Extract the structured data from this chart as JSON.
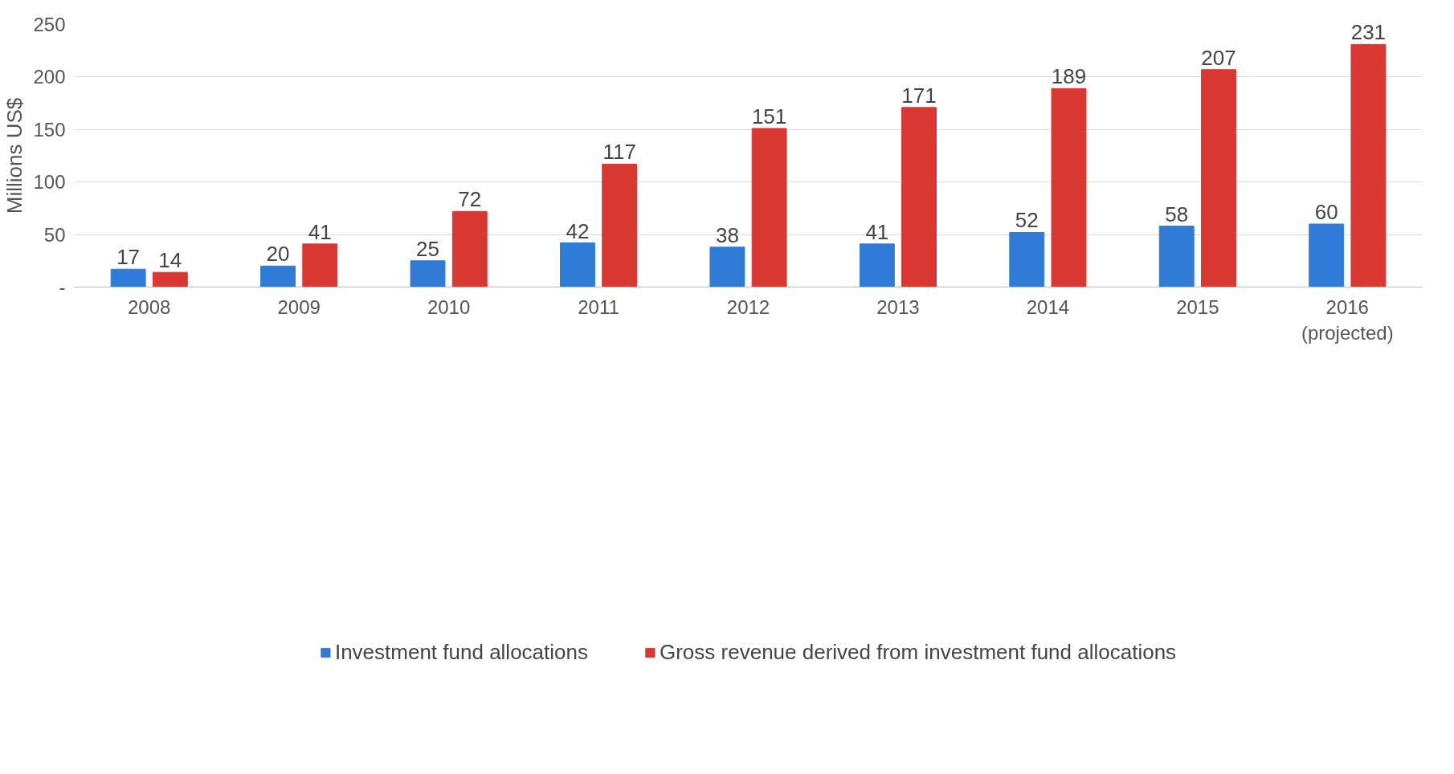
{
  "chart_data": {
    "type": "bar",
    "ylabel": "Millions US$",
    "categories": [
      "2008",
      "2009",
      "2010",
      "2011",
      "2012",
      "2013",
      "2014",
      "2015",
      "2016\n(projected)"
    ],
    "series": [
      {
        "name": "Investment fund allocations",
        "color": "#2f7bd6",
        "values": [
          17,
          20,
          25,
          42,
          38,
          41,
          52,
          58,
          60
        ]
      },
      {
        "name": "Gross revenue derived from investment fund allocations",
        "color": "#d93732",
        "values": [
          14,
          41,
          72,
          117,
          151,
          171,
          189,
          207,
          231
        ]
      }
    ],
    "ylim": [
      0,
      250
    ],
    "yticks": [
      {
        "value": 0,
        "label": "-"
      },
      50,
      100,
      150,
      200,
      250
    ],
    "grid": "y",
    "legend": "bottom",
    "data_labels": true
  }
}
